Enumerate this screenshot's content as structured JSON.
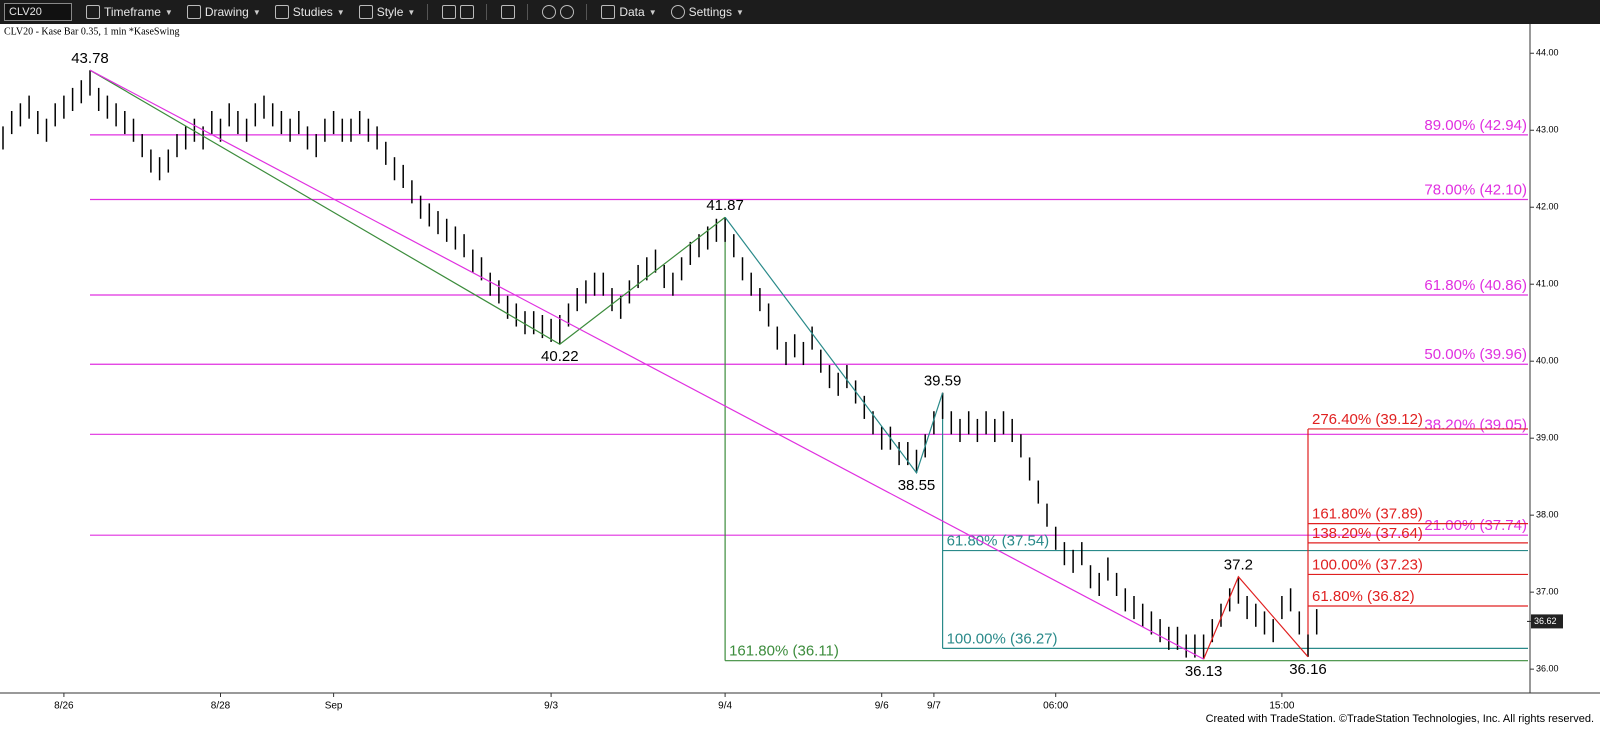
{
  "toolbar": {
    "symbol": "CLV20",
    "items": [
      "Timeframe",
      "Drawing",
      "Studies",
      "Style",
      "Data",
      "Settings"
    ]
  },
  "footer": "Created with TradeStation. ©TradeStation Technologies, Inc. All rights reserved.",
  "chart_data": {
    "type": "ohlc",
    "subtitle": "CLV20 - Kase Bar 0.35, 1 min  *KaseSwing",
    "color": "#000000",
    "categories": [
      null,
      null,
      null,
      null,
      null,
      null,
      null,
      "8/26",
      null,
      null,
      null,
      null,
      null,
      null,
      null,
      null,
      null,
      null,
      null,
      null,
      null,
      null,
      null,
      null,
      null,
      "8/28",
      null,
      null,
      null,
      null,
      null,
      null,
      null,
      null,
      null,
      null,
      null,
      null,
      "Sep",
      null,
      null,
      null,
      null,
      null,
      null,
      null,
      null,
      null,
      null,
      null,
      null,
      null,
      null,
      null,
      null,
      null,
      null,
      null,
      null,
      null,
      null,
      null,
      null,
      "9/3",
      null,
      null,
      null,
      null,
      null,
      null,
      null,
      null,
      null,
      null,
      null,
      null,
      null,
      null,
      null,
      null,
      null,
      null,
      null,
      "9/4",
      null,
      null,
      null,
      null,
      null,
      null,
      null,
      null,
      null,
      null,
      null,
      null,
      null,
      null,
      null,
      null,
      null,
      "9/6",
      null,
      null,
      null,
      null,
      null,
      "9/7",
      null,
      null,
      null,
      null,
      null,
      null,
      null,
      null,
      null,
      null,
      null,
      null,
      null,
      "06:00",
      null,
      null,
      null,
      null,
      null,
      null,
      null,
      null,
      null,
      null,
      null,
      null,
      null,
      null,
      null,
      null,
      null,
      null,
      null,
      null,
      null,
      null,
      null,
      null,
      null,
      "15:00",
      null,
      null,
      null,
      null
    ],
    "highs": [
      43.05,
      43.25,
      43.35,
      43.45,
      43.25,
      43.15,
      43.35,
      43.45,
      43.55,
      43.65,
      43.78,
      43.55,
      43.45,
      43.35,
      43.25,
      43.15,
      42.95,
      42.75,
      42.65,
      42.75,
      42.95,
      43.05,
      43.15,
      43.05,
      43.25,
      43.15,
      43.35,
      43.25,
      43.15,
      43.35,
      43.45,
      43.35,
      43.25,
      43.15,
      43.25,
      43.05,
      42.95,
      43.15,
      43.25,
      43.15,
      43.15,
      43.25,
      43.15,
      43.05,
      42.85,
      42.65,
      42.55,
      42.35,
      42.15,
      42.05,
      41.95,
      41.85,
      41.75,
      41.65,
      41.45,
      41.35,
      41.15,
      41.05,
      40.85,
      40.75,
      40.65,
      40.65,
      40.6,
      40.55,
      40.6,
      40.75,
      40.95,
      41.05,
      41.15,
      41.15,
      40.95,
      40.85,
      41.05,
      41.25,
      41.35,
      41.45,
      41.25,
      41.15,
      41.35,
      41.55,
      41.65,
      41.75,
      41.85,
      41.87,
      41.65,
      41.35,
      41.15,
      40.95,
      40.75,
      40.45,
      40.25,
      40.35,
      40.25,
      40.45,
      40.15,
      39.95,
      39.85,
      39.95,
      39.75,
      39.55,
      39.35,
      39.15,
      39.15,
      38.95,
      38.95,
      38.85,
      39.05,
      39.35,
      39.59,
      39.35,
      39.25,
      39.35,
      39.25,
      39.35,
      39.25,
      39.35,
      39.25,
      39.05,
      38.75,
      38.45,
      38.15,
      37.85,
      37.65,
      37.55,
      37.65,
      37.35,
      37.25,
      37.45,
      37.25,
      37.05,
      36.95,
      36.85,
      36.75,
      36.65,
      36.55,
      36.55,
      36.45,
      36.45,
      36.45,
      36.65,
      36.85,
      37.05,
      37.2,
      36.95,
      36.85,
      36.75,
      36.65,
      36.95,
      37.05,
      36.75,
      36.45,
      36.78
    ],
    "lows": [
      42.75,
      42.95,
      43.05,
      43.15,
      42.95,
      42.85,
      43.05,
      43.15,
      43.25,
      43.35,
      43.45,
      43.25,
      43.15,
      43.05,
      42.95,
      42.85,
      42.65,
      42.45,
      42.35,
      42.45,
      42.65,
      42.75,
      42.85,
      42.75,
      42.95,
      42.85,
      43.05,
      42.95,
      42.85,
      43.05,
      43.15,
      43.05,
      42.95,
      42.85,
      42.95,
      42.75,
      42.65,
      42.85,
      42.95,
      42.85,
      42.85,
      42.95,
      42.85,
      42.75,
      42.55,
      42.35,
      42.25,
      42.05,
      41.85,
      41.75,
      41.65,
      41.55,
      41.45,
      41.35,
      41.15,
      41.05,
      40.85,
      40.75,
      40.55,
      40.45,
      40.35,
      40.35,
      40.3,
      40.25,
      40.22,
      40.45,
      40.65,
      40.75,
      40.85,
      40.85,
      40.65,
      40.55,
      40.75,
      40.95,
      41.05,
      41.15,
      40.95,
      40.85,
      41.05,
      41.25,
      41.35,
      41.45,
      41.55,
      41.55,
      41.35,
      41.05,
      40.85,
      40.65,
      40.45,
      40.15,
      39.95,
      40.05,
      39.95,
      40.15,
      39.85,
      39.65,
      39.55,
      39.65,
      39.45,
      39.25,
      39.05,
      38.85,
      38.85,
      38.65,
      38.65,
      38.55,
      38.75,
      39.05,
      39.25,
      39.05,
      38.95,
      39.05,
      38.95,
      39.05,
      38.95,
      39.05,
      38.95,
      38.75,
      38.45,
      38.15,
      37.85,
      37.55,
      37.35,
      37.25,
      37.35,
      37.05,
      36.95,
      37.15,
      36.95,
      36.75,
      36.65,
      36.55,
      36.45,
      36.35,
      36.25,
      36.25,
      36.15,
      36.15,
      36.13,
      36.35,
      36.55,
      36.75,
      36.85,
      36.65,
      36.55,
      36.45,
      36.35,
      36.65,
      36.75,
      36.45,
      36.16,
      36.45
    ],
    "last": 36.62,
    "ylim": [
      35.69,
      44.38
    ],
    "yticks": [
      {
        "value": 36,
        "label": "36.00"
      },
      {
        "value": 37,
        "label": "37.00"
      },
      {
        "value": 38,
        "label": "38.00"
      },
      {
        "value": 39,
        "label": "39.00"
      },
      {
        "value": 40,
        "label": "40.00"
      },
      {
        "value": 41,
        "label": "41.00"
      },
      {
        "value": 42,
        "label": "42.00"
      },
      {
        "value": 43,
        "label": "43.00"
      },
      {
        "value": 44,
        "label": "44.00"
      }
    ],
    "swings": [
      {
        "color": "#3c8c3c",
        "points": [
          10,
          64,
          83
        ]
      },
      {
        "color": "#2a8a8a",
        "points": [
          83,
          105,
          108
        ]
      },
      {
        "color": "#e02020",
        "points": [
          138,
          142,
          150
        ]
      },
      {
        "color": "#e030e0",
        "points": [
          10,
          138
        ]
      }
    ],
    "levels": [
      {
        "color": "#e030e0",
        "anchor": 10,
        "vertical": false,
        "items": [
          {
            "value": 42.94,
            "label": "89.00% (42.94)"
          },
          {
            "value": 42.1,
            "label": "78.00% (42.10)"
          },
          {
            "value": 40.86,
            "label": "61.80% (40.86)"
          },
          {
            "value": 39.96,
            "label": "50.00% (39.96)"
          },
          {
            "value": 39.05,
            "label": "38.20% (39.05)"
          },
          {
            "value": 37.74,
            "label": "21.00% (37.74)"
          }
        ]
      },
      {
        "color": "#3c8c3c",
        "anchor": 83,
        "vertical": true,
        "items": [
          {
            "value": 36.11,
            "label": "161.80% (36.11)"
          }
        ]
      },
      {
        "color": "#2a8a8a",
        "anchor": 108,
        "vertical": true,
        "items": [
          {
            "value": 37.54,
            "label": "61.80% (37.54)"
          },
          {
            "value": 36.27,
            "label": "100.00% (36.27)"
          }
        ]
      },
      {
        "color": "#e02020",
        "anchor": 150,
        "vertical": true,
        "items": [
          {
            "value": 39.12,
            "label": "276.40% (39.12)"
          },
          {
            "value": 37.89,
            "label": "161.80% (37.89)"
          },
          {
            "value": 37.64,
            "label": "138.20% (37.64)"
          },
          {
            "value": 37.23,
            "label": "100.00% (37.23)"
          },
          {
            "value": 36.82,
            "label": "61.80% (36.82)"
          }
        ]
      }
    ]
  }
}
